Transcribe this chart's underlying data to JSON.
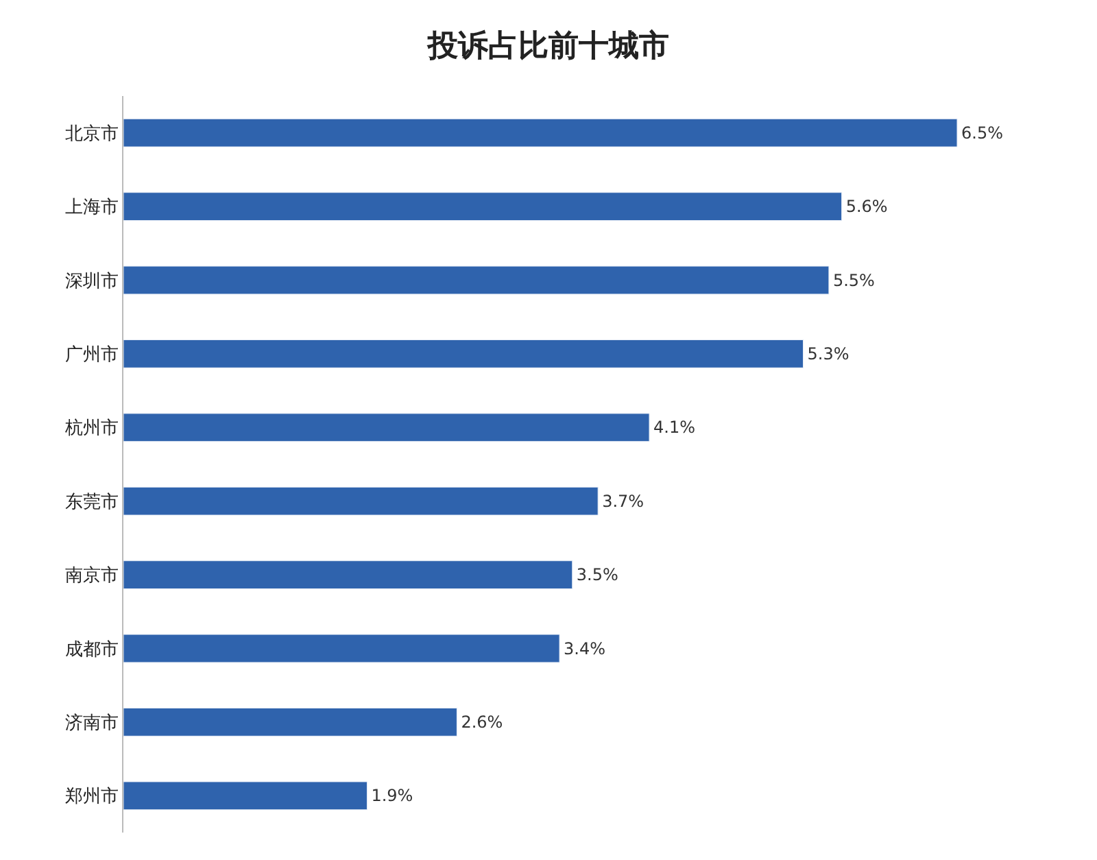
{
  "chart_data": {
    "type": "bar",
    "orientation": "horizontal",
    "title": "投诉占比前十城市",
    "categories": [
      "北京市",
      "上海市",
      "深圳市",
      "广州市",
      "杭州市",
      "东莞市",
      "南京市",
      "成都市",
      "济南市",
      "郑州市"
    ],
    "values": [
      6.5,
      5.6,
      5.5,
      5.3,
      4.1,
      3.7,
      3.5,
      3.4,
      2.6,
      1.9
    ],
    "value_labels": [
      "6.5%",
      "5.6%",
      "5.5%",
      "5.3%",
      "4.1%",
      "3.7%",
      "3.5%",
      "3.4%",
      "2.6%",
      "1.9%"
    ],
    "color": "#2f63ad"
  }
}
